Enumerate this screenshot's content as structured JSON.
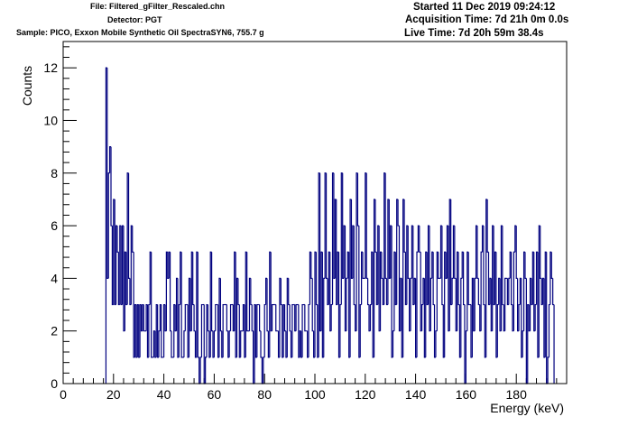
{
  "header": {
    "file": "File: Filtered_gFilter_Rescaled.chn",
    "detector": "Detector: PGT",
    "sample": "Sample: PICO, Exxon Mobile Synthetic Oil SpectraSYN6, 755.7 g",
    "started": "Started 11 Dec 2019 09:24:12",
    "acquisition": "Acquisition Time: 7d 21h 0m 0.0s",
    "live": "Live Time: 7d 20h 59m 38.4s"
  },
  "colors": {
    "series": "#00007f",
    "frame": "#000000",
    "background": "#ffffff"
  },
  "chart_data": {
    "type": "step histogram",
    "title": "",
    "xlabel": "Energy (keV)",
    "ylabel": "Counts",
    "xlim": [
      0,
      200
    ],
    "ylim": [
      0,
      13
    ],
    "x_ticks": [
      0,
      20,
      40,
      60,
      80,
      100,
      120,
      140,
      160,
      180
    ],
    "x_tick_labels": [
      "0",
      "20",
      "40",
      "60",
      "80",
      "100",
      "120",
      "140",
      "160",
      "180"
    ],
    "y_ticks": [
      0,
      2,
      4,
      6,
      8,
      10,
      12
    ],
    "y_tick_labels": [
      "0",
      "2",
      "4",
      "6",
      "8",
      "10",
      "12"
    ],
    "grid": false,
    "legend": "none",
    "series": [
      {
        "bin_start": 17,
        "bin_width": 0.5,
        "values": [
          12,
          4,
          8,
          9,
          6,
          3,
          7,
          3,
          6,
          5,
          3,
          6,
          3,
          6,
          2,
          5,
          3,
          8,
          4,
          3,
          6,
          5,
          1,
          3,
          1,
          3,
          1,
          3,
          2,
          3,
          2,
          2,
          3,
          1,
          3,
          5,
          1,
          1,
          2,
          1,
          3,
          1,
          2,
          3,
          1,
          1,
          3,
          2,
          5,
          4,
          5,
          2,
          1,
          1,
          3,
          2,
          4,
          1,
          3,
          5,
          1,
          1,
          2,
          3,
          3,
          1,
          4,
          2,
          5,
          3,
          2,
          1,
          5,
          1,
          0,
          1,
          3,
          3,
          0,
          1,
          3,
          2,
          1,
          5,
          2,
          1,
          2,
          3,
          3,
          1,
          4,
          2,
          1,
          3,
          3,
          3,
          2,
          1,
          2,
          3,
          3,
          2,
          5,
          1,
          4,
          3,
          1,
          2,
          2,
          3,
          1,
          5,
          2,
          2,
          4,
          3,
          2,
          0,
          3,
          1,
          3,
          3,
          2,
          1,
          0,
          1,
          3,
          4,
          2,
          1,
          5,
          2,
          3,
          3,
          3,
          2,
          2,
          1,
          4,
          3,
          1,
          3,
          2,
          1,
          4,
          3,
          2,
          1,
          3,
          3,
          2,
          3,
          3,
          1,
          2,
          1,
          3,
          3,
          2,
          2,
          1,
          3,
          5,
          4,
          2,
          1,
          5,
          3,
          1,
          8,
          2,
          5,
          1,
          4,
          8,
          4,
          3,
          5,
          2,
          3,
          8,
          4,
          7,
          3,
          5,
          1,
          3,
          8,
          4,
          6,
          2,
          4,
          5,
          1,
          7,
          4,
          6,
          3,
          2,
          8,
          6,
          1,
          3,
          5,
          4,
          4,
          8,
          4,
          3,
          2,
          3,
          5,
          1,
          7,
          5,
          3,
          6,
          2,
          5,
          4,
          3,
          8,
          4,
          3,
          7,
          4,
          6,
          1,
          2,
          5,
          3,
          7,
          6,
          2,
          4,
          1,
          7,
          5,
          3,
          6,
          4,
          2,
          4,
          6,
          3,
          4,
          1,
          5,
          6,
          5,
          2,
          3,
          4,
          1,
          5,
          3,
          6,
          2,
          4,
          5,
          3,
          1,
          2,
          5,
          4,
          4,
          6,
          3,
          1,
          5,
          4,
          6,
          2,
          7,
          3,
          4,
          6,
          4,
          2,
          5,
          3,
          1,
          4,
          5,
          3,
          0,
          2,
          5,
          3,
          3,
          1,
          4,
          2,
          4,
          6,
          4,
          3,
          2,
          5,
          6,
          3,
          1,
          7,
          5,
          3,
          4,
          2,
          6,
          3,
          5,
          1,
          3,
          4,
          2,
          6,
          3,
          2,
          4,
          4,
          3,
          4,
          5,
          3,
          2,
          5,
          6,
          4,
          2,
          3,
          4,
          1,
          2,
          5,
          4,
          0,
          3,
          2,
          4,
          3,
          5,
          2,
          3,
          5,
          1,
          6,
          4,
          3,
          4,
          1,
          5,
          0,
          1,
          3,
          5,
          4,
          3
        ]
      }
    ]
  }
}
